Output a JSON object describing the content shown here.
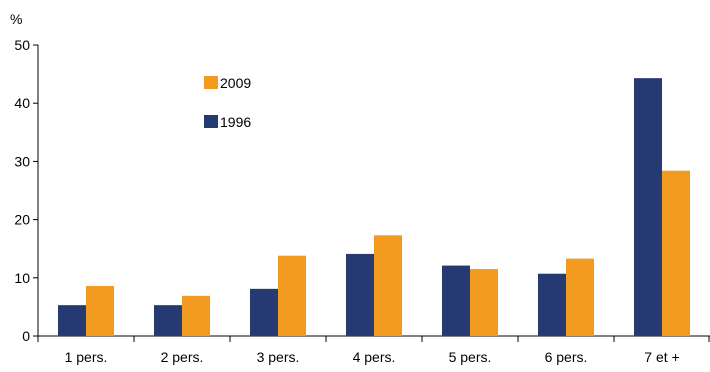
{
  "chart_data": {
    "type": "bar",
    "ylabel": "%",
    "ylim": [
      0,
      50
    ],
    "yticks": [
      0,
      10,
      20,
      30,
      40,
      50
    ],
    "categories": [
      "1 pers.",
      "2 pers.",
      "3 pers.",
      "4 pers.",
      "5 pers.",
      "6 pers.",
      "7 et +"
    ],
    "series": [
      {
        "name": "1996",
        "color": "#253a73",
        "values": [
          5.3,
          5.3,
          8.1,
          14.1,
          12.1,
          10.7,
          44.3
        ]
      },
      {
        "name": "2009",
        "color": "#f39a21",
        "values": [
          8.6,
          6.9,
          13.8,
          17.3,
          11.5,
          13.3,
          28.4
        ]
      }
    ],
    "legend": {
      "placement": "upper-left",
      "order": [
        "2009",
        "1996"
      ]
    },
    "grid": false
  }
}
